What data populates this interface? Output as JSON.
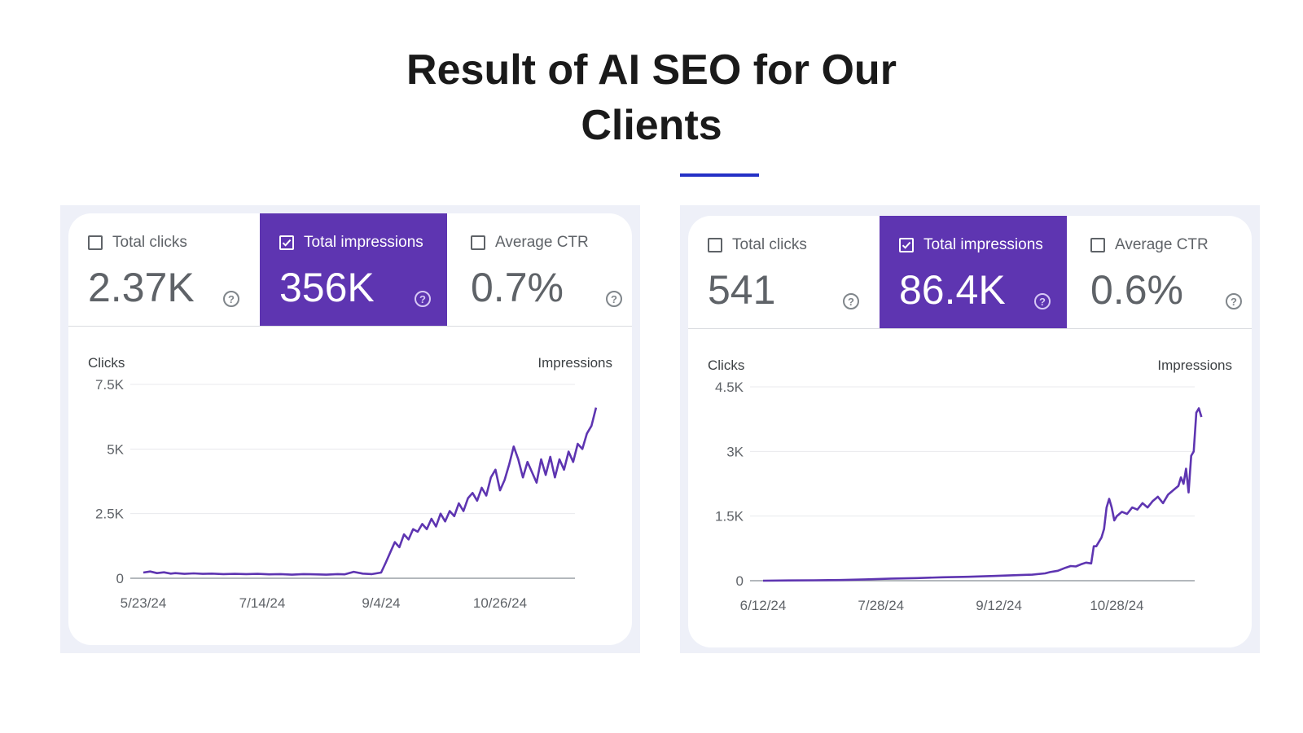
{
  "page": {
    "title_line1": "Result of AI SEO for Our",
    "title_line2": "Clients",
    "accent_color": "#2431c6"
  },
  "colors": {
    "active_metric": "#5e35b1",
    "series_line": "#5e35b1",
    "panel_bg": "#eef0f8"
  },
  "panels": [
    {
      "metrics": [
        {
          "label": "Total clicks",
          "value": "2.37K",
          "checked": false
        },
        {
          "label": "Total impressions",
          "value": "356K",
          "checked": true
        },
        {
          "label": "Average CTR",
          "value": "0.7%",
          "checked": false
        }
      ],
      "help_glyph": "?",
      "y_left_title": "Clicks",
      "y_right_title": "Impressions"
    },
    {
      "metrics": [
        {
          "label": "Total clicks",
          "value": "541",
          "checked": false
        },
        {
          "label": "Total impressions",
          "value": "86.4K",
          "checked": true
        },
        {
          "label": "Average CTR",
          "value": "0.6%",
          "checked": false
        }
      ],
      "help_glyph": "?",
      "y_left_title": "Clicks",
      "y_right_title": "Impressions"
    }
  ],
  "chart_data": [
    {
      "type": "line",
      "series": [
        {
          "name": "Total impressions"
        }
      ],
      "ylim": [
        0,
        7500
      ],
      "yticks": [
        0,
        2500,
        5000,
        7500
      ],
      "ytick_labels": [
        "0",
        "2.5K",
        "5K",
        "7.5K"
      ],
      "x_tick_labels": [
        "5/23/24",
        "7/14/24",
        "9/4/24",
        "10/26/24"
      ],
      "x_tick_pos": [
        0,
        52,
        104,
        156
      ],
      "x_max": 185,
      "points": [
        [
          0,
          220
        ],
        [
          3,
          260
        ],
        [
          6,
          200
        ],
        [
          9,
          230
        ],
        [
          12,
          180
        ],
        [
          14,
          200
        ],
        [
          18,
          170
        ],
        [
          22,
          190
        ],
        [
          26,
          170
        ],
        [
          30,
          180
        ],
        [
          35,
          160
        ],
        [
          40,
          170
        ],
        [
          45,
          160
        ],
        [
          50,
          170
        ],
        [
          55,
          150
        ],
        [
          60,
          160
        ],
        [
          65,
          140
        ],
        [
          70,
          160
        ],
        [
          75,
          150
        ],
        [
          80,
          140
        ],
        [
          85,
          160
        ],
        [
          88,
          150
        ],
        [
          92,
          250
        ],
        [
          96,
          180
        ],
        [
          100,
          160
        ],
        [
          104,
          220
        ],
        [
          106,
          600
        ],
        [
          108,
          1000
        ],
        [
          110,
          1400
        ],
        [
          112,
          1200
        ],
        [
          114,
          1700
        ],
        [
          116,
          1500
        ],
        [
          118,
          1900
        ],
        [
          120,
          1800
        ],
        [
          122,
          2100
        ],
        [
          124,
          1900
        ],
        [
          126,
          2300
        ],
        [
          128,
          2000
        ],
        [
          130,
          2500
        ],
        [
          132,
          2200
        ],
        [
          134,
          2600
        ],
        [
          136,
          2400
        ],
        [
          138,
          2900
        ],
        [
          140,
          2600
        ],
        [
          142,
          3100
        ],
        [
          144,
          3300
        ],
        [
          146,
          3000
        ],
        [
          148,
          3500
        ],
        [
          150,
          3200
        ],
        [
          152,
          3900
        ],
        [
          154,
          4200
        ],
        [
          156,
          3400
        ],
        [
          158,
          3800
        ],
        [
          160,
          4400
        ],
        [
          162,
          5100
        ],
        [
          164,
          4600
        ],
        [
          166,
          3900
        ],
        [
          168,
          4500
        ],
        [
          170,
          4100
        ],
        [
          172,
          3700
        ],
        [
          174,
          4600
        ],
        [
          176,
          4000
        ],
        [
          178,
          4700
        ],
        [
          180,
          3900
        ],
        [
          182,
          4600
        ],
        [
          184,
          4200
        ],
        [
          186,
          4900
        ],
        [
          188,
          4500
        ],
        [
          190,
          5200
        ],
        [
          192,
          5000
        ],
        [
          194,
          5600
        ],
        [
          196,
          5900
        ],
        [
          198,
          6600
        ]
      ]
    },
    {
      "type": "line",
      "series": [
        {
          "name": "Total impressions"
        }
      ],
      "ylim": [
        0,
        4500
      ],
      "yticks": [
        0,
        1500,
        3000,
        4500
      ],
      "ytick_labels": [
        "0",
        "1.5K",
        "3K",
        "4.5K"
      ],
      "x_tick_labels": [
        "6/12/24",
        "7/28/24",
        "9/12/24",
        "10/28/24"
      ],
      "x_tick_pos": [
        0,
        46,
        92,
        138
      ],
      "x_max": 165,
      "points": [
        [
          0,
          0
        ],
        [
          10,
          5
        ],
        [
          20,
          10
        ],
        [
          30,
          15
        ],
        [
          40,
          30
        ],
        [
          50,
          50
        ],
        [
          60,
          60
        ],
        [
          70,
          80
        ],
        [
          80,
          90
        ],
        [
          90,
          110
        ],
        [
          100,
          130
        ],
        [
          105,
          140
        ],
        [
          110,
          170
        ],
        [
          112,
          200
        ],
        [
          115,
          230
        ],
        [
          118,
          300
        ],
        [
          120,
          340
        ],
        [
          122,
          330
        ],
        [
          124,
          380
        ],
        [
          126,
          420
        ],
        [
          128,
          400
        ],
        [
          129,
          800
        ],
        [
          130,
          800
        ],
        [
          132,
          1000
        ],
        [
          133,
          1200
        ],
        [
          134,
          1700
        ],
        [
          135,
          1900
        ],
        [
          136,
          1700
        ],
        [
          137,
          1400
        ],
        [
          138,
          1500
        ],
        [
          140,
          1600
        ],
        [
          142,
          1550
        ],
        [
          144,
          1700
        ],
        [
          146,
          1650
        ],
        [
          148,
          1800
        ],
        [
          150,
          1700
        ],
        [
          152,
          1850
        ],
        [
          154,
          1950
        ],
        [
          156,
          1800
        ],
        [
          158,
          2000
        ],
        [
          160,
          2100
        ],
        [
          162,
          2200
        ],
        [
          163,
          2400
        ],
        [
          164,
          2250
        ],
        [
          165,
          2600
        ],
        [
          166,
          2050
        ],
        [
          167,
          2900
        ],
        [
          168,
          3000
        ],
        [
          169,
          3900
        ],
        [
          170,
          4000
        ],
        [
          171,
          3800
        ]
      ]
    }
  ]
}
